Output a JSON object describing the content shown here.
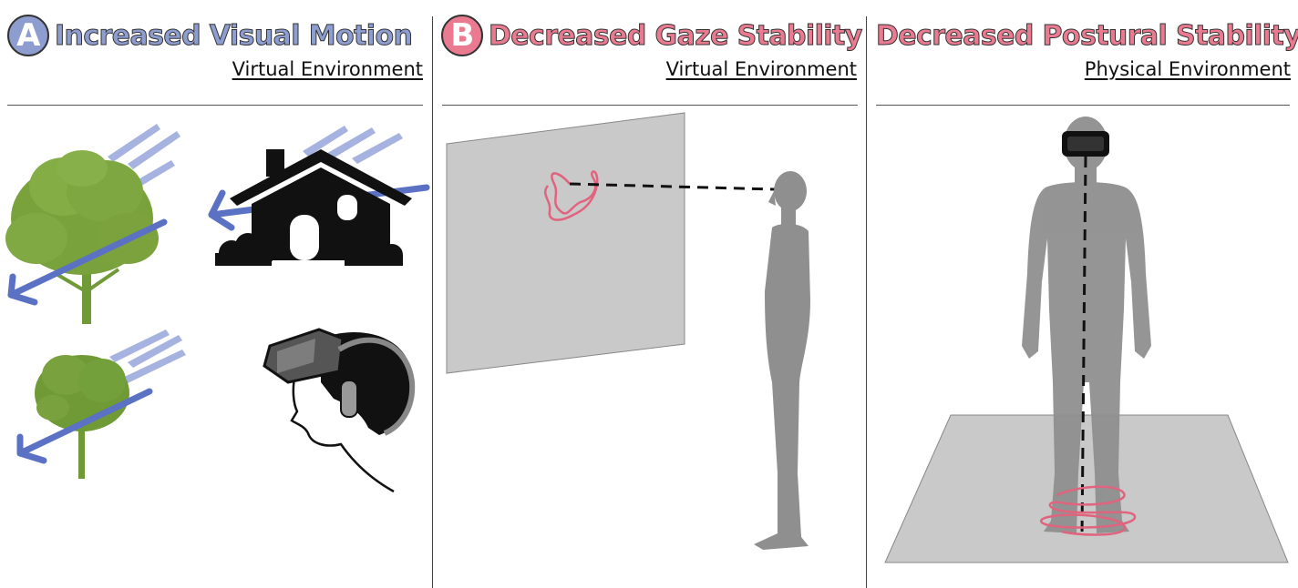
{
  "panels": [
    {
      "badge": "A",
      "title": "Increased Visual Motion",
      "subtitle": "Virtual Environment",
      "color": "#8e9dd0"
    },
    {
      "badge": "B",
      "title": "Decreased Gaze Stability",
      "subtitle": "Virtual Environment",
      "color": "#ea7a90"
    },
    {
      "badge": "",
      "title": "Decreased Postural Stability",
      "subtitle": "Physical Environment",
      "color": "#ea7a90"
    }
  ],
  "colors": {
    "arrow_blue": "#5b72c4",
    "trail_blue": "#a6b3e0",
    "tree_green": "#6f9a36",
    "trace_pink": "#e0647d",
    "screen_gray": "#c9c9c9",
    "figure_gray": "#8f8f8f"
  },
  "icons": [
    "tree-icon",
    "house-icon",
    "vr-headset-user-icon",
    "human-silhouette-icon",
    "vr-headset-icon"
  ]
}
